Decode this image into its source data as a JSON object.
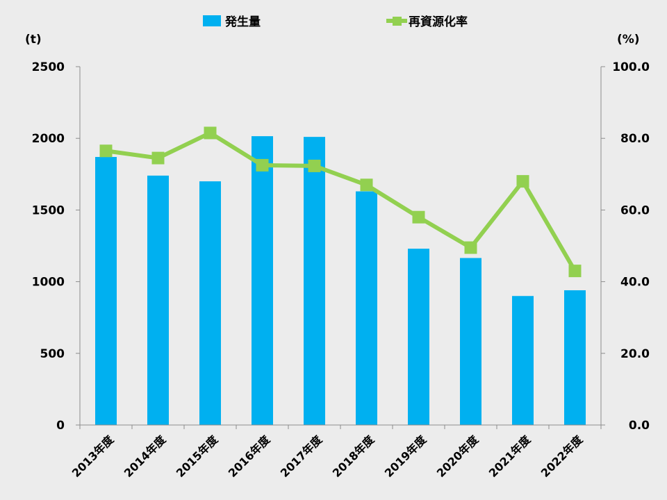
{
  "chart_data": {
    "type": "bar+line",
    "categories": [
      "2013年度",
      "2014年度",
      "2015年度",
      "2016年度",
      "2017年度",
      "2018年度",
      "2019年度",
      "2020年度",
      "2021年度",
      "2022年度"
    ],
    "series": [
      {
        "name": "発生量",
        "type": "bar",
        "axis": "left",
        "color": "#00b0f0",
        "values": [
          1870,
          1740,
          1700,
          2015,
          2010,
          1630,
          1230,
          1165,
          900,
          940
        ]
      },
      {
        "name": "再資源化率",
        "type": "line",
        "axis": "right",
        "color": "#92d050",
        "values": [
          76.5,
          74.5,
          81.5,
          72.5,
          72.3,
          67.0,
          58.0,
          49.5,
          68.0,
          43.0
        ]
      }
    ],
    "y_left": {
      "unit": "(t)",
      "ylim": [
        0,
        2500
      ],
      "ticks": [
        "0",
        "500",
        "1000",
        "1500",
        "2000",
        "2500"
      ]
    },
    "y_right": {
      "unit": "(%)",
      "ylim": [
        0,
        100
      ],
      "ticks": [
        "0.0",
        "20.0",
        "40.0",
        "60.0",
        "80.0",
        "100.0"
      ]
    },
    "legend": {
      "position": "top"
    },
    "grid": false
  }
}
